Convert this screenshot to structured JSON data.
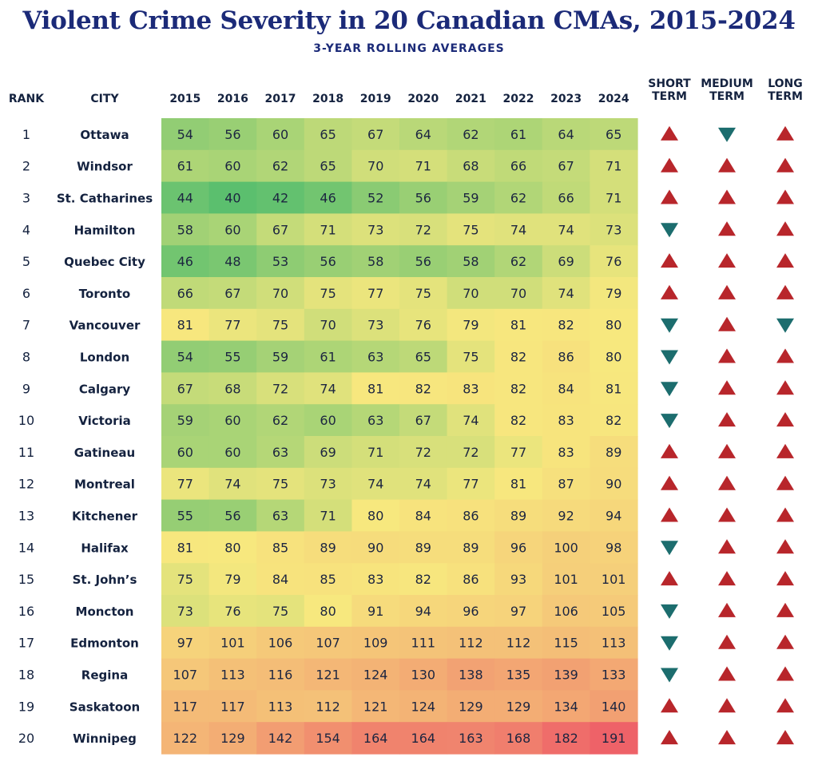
{
  "title": "Violent Crime Severity in 20 Canadian CMAs, 2015-2024",
  "subtitle": "3-YEAR ROLLING AVERAGES",
  "headers": {
    "rank": "RANK",
    "city": "CITY",
    "trend_columns": [
      [
        "SHORT",
        "TERM"
      ],
      [
        "MEDIUM",
        "TERM"
      ],
      [
        "LONG",
        "TERM"
      ]
    ]
  },
  "colors": {
    "low": "#5bbf6e",
    "mid": "#f7e87e",
    "high": "#ee6268",
    "up_arrow": "#b8262b",
    "down_arrow": "#1c6d6e"
  },
  "chart_data": {
    "type": "heatmap",
    "title": "Violent Crime Severity in 20 Canadian CMAs, 2015-2024",
    "subtitle": "3-YEAR ROLLING AVERAGES",
    "x": [
      "2015",
      "2016",
      "2017",
      "2018",
      "2019",
      "2020",
      "2021",
      "2022",
      "2023",
      "2024"
    ],
    "rows": [
      {
        "rank": "1",
        "city": "Ottawa",
        "values": [
          54,
          56,
          60,
          65,
          67,
          64,
          62,
          61,
          64,
          65
        ],
        "trends": [
          "up",
          "down",
          "up"
        ]
      },
      {
        "rank": "2",
        "city": "Windsor",
        "values": [
          61,
          60,
          62,
          65,
          70,
          71,
          68,
          66,
          67,
          71
        ],
        "trends": [
          "up",
          "up",
          "up"
        ]
      },
      {
        "rank": "3",
        "city": "St. Catharines",
        "values": [
          44,
          40,
          42,
          46,
          52,
          56,
          59,
          62,
          66,
          71
        ],
        "trends": [
          "up",
          "up",
          "up"
        ]
      },
      {
        "rank": "4",
        "city": "Hamilton",
        "values": [
          58,
          60,
          67,
          71,
          73,
          72,
          75,
          74,
          74,
          73
        ],
        "trends": [
          "down",
          "up",
          "up"
        ]
      },
      {
        "rank": "5",
        "city": "Quebec City",
        "values": [
          46,
          48,
          53,
          56,
          58,
          56,
          58,
          62,
          69,
          76
        ],
        "trends": [
          "up",
          "up",
          "up"
        ]
      },
      {
        "rank": "6",
        "city": "Toronto",
        "values": [
          66,
          67,
          70,
          75,
          77,
          75,
          70,
          70,
          74,
          79
        ],
        "trends": [
          "up",
          "up",
          "up"
        ]
      },
      {
        "rank": "7",
        "city": "Vancouver",
        "values": [
          81,
          77,
          75,
          70,
          73,
          76,
          79,
          81,
          82,
          80
        ],
        "trends": [
          "down",
          "up",
          "down"
        ]
      },
      {
        "rank": "8",
        "city": "London",
        "values": [
          54,
          55,
          59,
          61,
          63,
          65,
          75,
          82,
          86,
          80
        ],
        "trends": [
          "down",
          "up",
          "up"
        ]
      },
      {
        "rank": "9",
        "city": "Calgary",
        "values": [
          67,
          68,
          72,
          74,
          81,
          82,
          83,
          82,
          84,
          81
        ],
        "trends": [
          "down",
          "up",
          "up"
        ]
      },
      {
        "rank": "10",
        "city": "Victoria",
        "values": [
          59,
          60,
          62,
          60,
          63,
          67,
          74,
          82,
          83,
          82
        ],
        "trends": [
          "down",
          "up",
          "up"
        ]
      },
      {
        "rank": "11",
        "city": "Gatineau",
        "values": [
          60,
          60,
          63,
          69,
          71,
          72,
          72,
          77,
          83,
          89
        ],
        "trends": [
          "up",
          "up",
          "up"
        ]
      },
      {
        "rank": "12",
        "city": "Montreal",
        "values": [
          77,
          74,
          75,
          73,
          74,
          74,
          77,
          81,
          87,
          90
        ],
        "trends": [
          "up",
          "up",
          "up"
        ]
      },
      {
        "rank": "13",
        "city": "Kitchener",
        "values": [
          55,
          56,
          63,
          71,
          80,
          84,
          86,
          89,
          92,
          94
        ],
        "trends": [
          "up",
          "up",
          "up"
        ]
      },
      {
        "rank": "14",
        "city": "Halifax",
        "values": [
          81,
          80,
          85,
          89,
          90,
          89,
          89,
          96,
          100,
          98
        ],
        "trends": [
          "down",
          "up",
          "up"
        ]
      },
      {
        "rank": "15",
        "city": "St. John’s",
        "values": [
          75,
          79,
          84,
          85,
          83,
          82,
          86,
          93,
          101,
          101
        ],
        "trends": [
          "up",
          "up",
          "up"
        ]
      },
      {
        "rank": "16",
        "city": "Moncton",
        "values": [
          73,
          76,
          75,
          80,
          91,
          94,
          96,
          97,
          106,
          105
        ],
        "trends": [
          "down",
          "up",
          "up"
        ]
      },
      {
        "rank": "17",
        "city": "Edmonton",
        "values": [
          97,
          101,
          106,
          107,
          109,
          111,
          112,
          112,
          115,
          113
        ],
        "trends": [
          "down",
          "up",
          "up"
        ]
      },
      {
        "rank": "18",
        "city": "Regina",
        "values": [
          107,
          113,
          116,
          121,
          124,
          130,
          138,
          135,
          139,
          133
        ],
        "trends": [
          "down",
          "up",
          "up"
        ]
      },
      {
        "rank": "19",
        "city": "Saskatoon",
        "values": [
          117,
          117,
          113,
          112,
          121,
          124,
          129,
          129,
          134,
          140
        ],
        "trends": [
          "up",
          "up",
          "up"
        ]
      },
      {
        "rank": "20",
        "city": "Winnipeg",
        "values": [
          122,
          129,
          142,
          154,
          164,
          164,
          163,
          168,
          182,
          191
        ],
        "trends": [
          "up",
          "up",
          "up"
        ]
      }
    ]
  }
}
